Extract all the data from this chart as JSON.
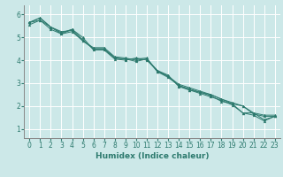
{
  "title": "",
  "xlabel": "Humidex (Indice chaleur)",
  "ylabel": "",
  "bg_color": "#cce8e8",
  "grid_color": "#ffffff",
  "line_color": "#2d7a6e",
  "x_ticks": [
    0,
    1,
    2,
    3,
    4,
    5,
    6,
    7,
    8,
    9,
    10,
    11,
    12,
    13,
    14,
    15,
    16,
    17,
    18,
    19,
    20,
    21,
    22,
    23
  ],
  "y_ticks": [
    1,
    2,
    3,
    4,
    5,
    6
  ],
  "xlim": [
    -0.5,
    23.5
  ],
  "ylim": [
    0.6,
    6.4
  ],
  "lines": [
    [
      5.65,
      5.85,
      5.45,
      5.15,
      5.35,
      5.0,
      4.45,
      4.45,
      4.05,
      4.0,
      4.1,
      4.0,
      3.55,
      3.35,
      2.85,
      2.7,
      2.55,
      2.4,
      2.25,
      2.05,
      1.7,
      1.6,
      1.35,
      1.55
    ],
    [
      5.65,
      5.85,
      5.45,
      5.2,
      5.35,
      4.9,
      4.5,
      4.5,
      4.1,
      4.05,
      4.05,
      4.1,
      3.5,
      3.3,
      2.9,
      2.75,
      2.6,
      2.45,
      2.2,
      2.1,
      1.7,
      1.7,
      1.4,
      1.55
    ],
    [
      5.65,
      5.75,
      5.45,
      5.25,
      5.3,
      4.85,
      4.55,
      4.55,
      4.15,
      4.1,
      4.0,
      4.05,
      3.55,
      3.3,
      2.95,
      2.8,
      2.65,
      2.5,
      2.3,
      2.15,
      2.0,
      1.7,
      1.6,
      1.6
    ],
    [
      5.55,
      5.75,
      5.35,
      5.15,
      5.25,
      4.85,
      4.5,
      4.5,
      4.1,
      4.05,
      3.95,
      4.05,
      3.5,
      3.25,
      2.9,
      2.7,
      2.6,
      2.5,
      2.3,
      2.1,
      2.0,
      1.65,
      1.55,
      1.55
    ]
  ],
  "tick_fontsize": 5.5,
  "xlabel_fontsize": 6.5,
  "xlabel_color": "#2d7a6e",
  "spine_color": "#888888"
}
